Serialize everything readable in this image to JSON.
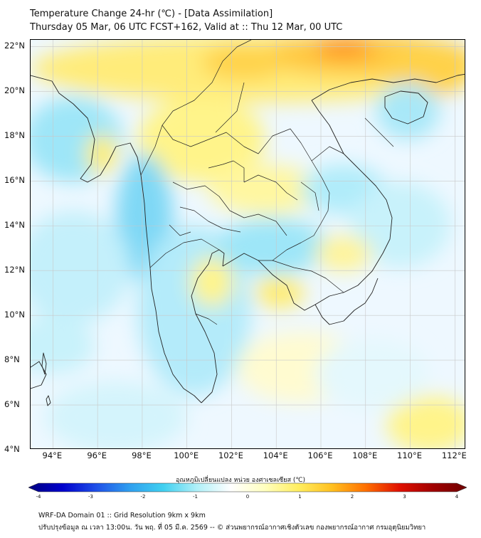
{
  "header": {
    "title_line1": "Temperature Change 24-hr (℃) - [Data Assimilation]",
    "title_line2": "Thursday 05 Mar, 06 UTC FCST+162, Valid at :: Thu 12 Mar, 00 UTC"
  },
  "map": {
    "lat_labels": [
      "22°N",
      "20°N",
      "18°N",
      "16°N",
      "14°N",
      "12°N",
      "10°N",
      "8°N",
      "6°N",
      "4°N"
    ],
    "lon_labels": [
      "94°E",
      "96°E",
      "98°E",
      "100°E",
      "102°E",
      "104°E",
      "106°E",
      "108°E",
      "110°E",
      "112°E"
    ],
    "lat_range": [
      4,
      22.3
    ],
    "lon_range": [
      93.0,
      112.5
    ],
    "land_color": "#f4f4f4",
    "border_color": "#222222"
  },
  "colorbar": {
    "title": "อุณหภูมิเปลี่ยนแปลง หน่วย องศาเซลเซียส (℃)",
    "ticks": [
      "-4",
      "-3",
      "-2",
      "-1",
      "0",
      "1",
      "2",
      "3",
      "4"
    ],
    "min": -4,
    "max": 4,
    "colors": [
      "#00007f",
      "#0000cc",
      "#1f4fe8",
      "#2f9fef",
      "#40d0f0",
      "#b0f0f8",
      "#ffffff",
      "#ffffc0",
      "#ffee60",
      "#ffc020",
      "#ff7000",
      "#e01000",
      "#a00000",
      "#6e0000"
    ]
  },
  "footer": {
    "line1": "WRF-DA Domain 01 :: Grid Resolution 9km x 9km",
    "line2": "ปรับปรุงข้อมูล ณ เวลา 13:00น. วัน พฤ. ที่ 05 มี.ค. 2569 -- © ส่วนพยากรณ์อากาศเชิงตัวเลข กองพยากรณ์อากาศ กรมอุตุนิยมวิทยา"
  }
}
